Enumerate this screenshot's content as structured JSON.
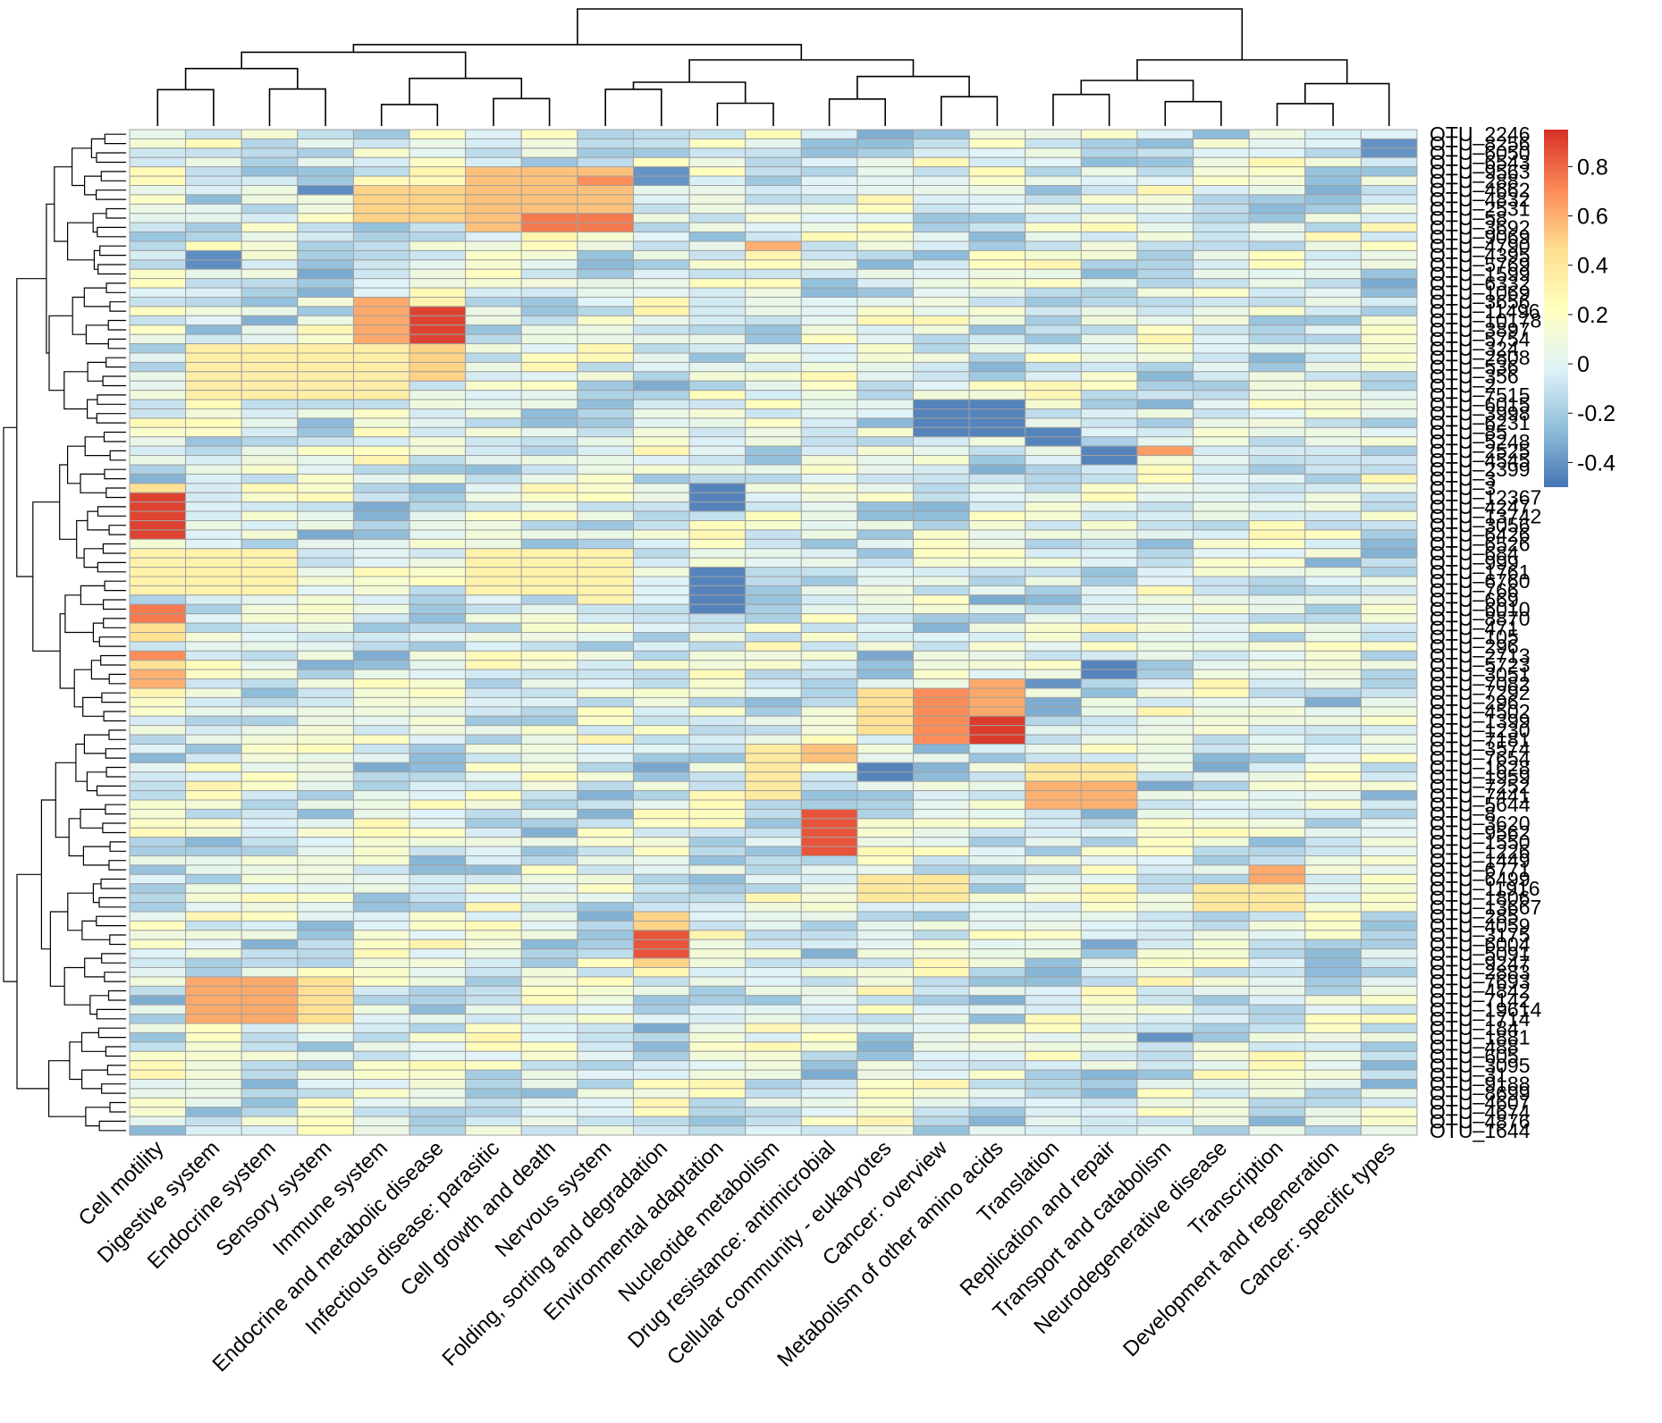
{
  "chart_data": {
    "type": "heatmap",
    "title": "",
    "columns": [
      "Cell motility",
      "Digestive system",
      "Endocrine system",
      "Sensory system",
      "Immune system",
      "Endocrine and metabolic disease",
      "Infectious disease: parasitic",
      "Cell growth and death",
      "Nervous system",
      "Folding, sorting and degradation",
      "Environmental adaptation",
      "Nucleotide metabolism",
      "Drug resistance: antimicrobial",
      "Cellular community - eukaryotes",
      "Cancer: overview",
      "Metabolism of other amino acids",
      "Translation",
      "Replication and repair",
      "Transport and catabolism",
      "Neurodegenerative disease",
      "Transcription",
      "Development and regeneration",
      "Cancer: specific types"
    ],
    "row_labels": [
      "OTU_2246",
      "OTU_8256",
      "OTU_6050",
      "OTU_6543",
      "OTU_9563",
      "OTU_288",
      "OTU_4662",
      "OTU_4832",
      "OTU_2531",
      "OTU_58",
      "OTU_3692",
      "OTU_9069",
      "OTU_4790",
      "OTU_4395",
      "OTU_5769",
      "OTU_1599",
      "OTU_6332",
      "OTU_1069",
      "OTU_3656",
      "OTU_11496",
      "OTU_10178",
      "OTU_3897",
      "OTU_5754",
      "OTU_324",
      "OTU_2808",
      "OTU_536",
      "OTU_356",
      "OTU_2",
      "OTU_7515",
      "OTU_6015",
      "OTU_3998",
      "OTU_6231",
      "OTU_85",
      "OTU_5248",
      "OTU_2525",
      "OTU_4545",
      "OTU_2399",
      "OTU_3",
      "OTU_3",
      "OTU_12367",
      "OTU_4247",
      "OTU_13742",
      "OTU_3056",
      "OTU_6426",
      "OTU_6526",
      "OTU_684",
      "OTU_999",
      "OTU_1761",
      "OTU_6760",
      "OTU_766",
      "OTU_669",
      "OTU_6010",
      "OTU_8870",
      "OTU_471",
      "OTU_105",
      "OTU_296",
      "OTU_2713",
      "OTU_5723",
      "OTU_3051",
      "OTU_7082",
      "OTU_7292",
      "OTU_296",
      "OTU_4502",
      "OTU_1399",
      "OTU_1230",
      "OTU_7181",
      "OTU_3574",
      "OTU_7654",
      "OTU_1628",
      "OTU_1959",
      "OTU_7252",
      "OTU_7441",
      "OTU_5644",
      "OTU_8",
      "OTU_3620",
      "OTU_9562",
      "OTU_1550",
      "OTU_1226",
      "OTU_1449",
      "OTU_6771",
      "OTU_6499",
      "OTU_11916",
      "OTU_1806",
      "OTU_13667",
      "OTU_285",
      "OTU_4059",
      "OTU_3175",
      "OTU_6004",
      "OTU_5091",
      "OTU_9247",
      "OTU_2883",
      "OTU_7693",
      "OTU_4842",
      "OTU_7142",
      "OTU_19614",
      "OTU_1714",
      "OTU_184",
      "OTU_1881",
      "OTU_488",
      "OTU_605",
      "OTU_3095",
      "OTU_31",
      "OTU_9188",
      "OTU_8699",
      "OTU_4607",
      "OTU_4674",
      "OTU_4876",
      "OTU_1644"
    ],
    "value_range": [
      -0.5,
      0.95
    ],
    "colorbar": {
      "ticks": [
        0.8,
        0.6,
        0.4,
        0.2,
        0,
        -0.2,
        -0.4
      ],
      "tick_labels": [
        "0.8",
        "0.6",
        "0.4",
        "0.2",
        "0",
        "-0.2",
        "-0.4"
      ],
      "colors": [
        "#4575b4",
        "#91bfdb",
        "#e0f3f8",
        "#ffffbf",
        "#fee090",
        "#fc8d59",
        "#d73027"
      ],
      "color_stops": [
        -0.5,
        -0.26,
        -0.02,
        0.22,
        0.46,
        0.7,
        0.95
      ]
    },
    "dendrograms": {
      "columns": true,
      "rows": true
    },
    "grid_line_color": "#a0a0a0",
    "hotspots": [
      {
        "cols": [
          0
        ],
        "rows": [
          39,
          40,
          41,
          42,
          43
        ],
        "value": 0.9
      },
      {
        "cols": [
          0
        ],
        "rows": [
          51,
          52
        ],
        "value": 0.75
      },
      {
        "cols": [
          0
        ],
        "rows": [
          56
        ],
        "value": 0.7
      },
      {
        "cols": [
          0
        ],
        "rows": [
          58,
          59
        ],
        "value": 0.6
      },
      {
        "cols": [
          0
        ],
        "rows": [
          38,
          53,
          54,
          57
        ],
        "value": 0.45
      },
      {
        "cols": [
          4
        ],
        "rows": [
          18,
          19,
          20,
          21,
          22
        ],
        "value": 0.62
      },
      {
        "cols": [
          5
        ],
        "rows": [
          19,
          20,
          21,
          22
        ],
        "value": 0.9
      },
      {
        "cols": [
          5
        ],
        "rows": [
          23,
          24,
          25,
          26
        ],
        "value": 0.5
      },
      {
        "cols": [
          4,
          5
        ],
        "rows": [
          6,
          7,
          8,
          9
        ],
        "value": 0.5
      },
      {
        "cols": [
          6,
          7,
          8
        ],
        "rows": [
          4,
          5,
          6,
          7,
          8,
          9,
          10
        ],
        "value": 0.55
      },
      {
        "cols": [
          7,
          8
        ],
        "rows": [
          9,
          10
        ],
        "value": 0.75
      },
      {
        "cols": [
          8
        ],
        "rows": [
          5
        ],
        "value": 0.7
      },
      {
        "cols": [
          1,
          2,
          3,
          4
        ],
        "rows": [
          23,
          24,
          25,
          26,
          27,
          28
        ],
        "value": 0.35
      },
      {
        "cols": [
          0,
          1,
          2,
          6,
          7,
          8
        ],
        "rows": [
          45,
          46,
          47,
          48,
          49
        ],
        "value": 0.32
      },
      {
        "cols": [
          14
        ],
        "rows": [
          60,
          61,
          62,
          63,
          64,
          65
        ],
        "value": 0.7
      },
      {
        "cols": [
          15
        ],
        "rows": [
          59,
          60,
          61,
          62
        ],
        "value": 0.62
      },
      {
        "cols": [
          15
        ],
        "rows": [
          63,
          64,
          65
        ],
        "value": 0.92
      },
      {
        "cols": [
          13
        ],
        "rows": [
          60,
          61,
          62,
          63,
          64
        ],
        "value": 0.45
      },
      {
        "cols": [
          12
        ],
        "rows": [
          73,
          74,
          75,
          76,
          77
        ],
        "value": 0.85
      },
      {
        "cols": [
          12
        ],
        "rows": [
          66,
          67
        ],
        "value": 0.55
      },
      {
        "cols": [
          9
        ],
        "rows": [
          86,
          87,
          88
        ],
        "value": 0.85
      },
      {
        "cols": [
          9
        ],
        "rows": [
          84,
          85,
          89
        ],
        "value": 0.5
      },
      {
        "cols": [
          1,
          2
        ],
        "rows": [
          91,
          92,
          93,
          94,
          95
        ],
        "value": 0.62
      },
      {
        "cols": [
          3
        ],
        "rows": [
          91,
          92,
          93,
          94,
          95
        ],
        "value": 0.45
      },
      {
        "cols": [
          16,
          17
        ],
        "rows": [
          70,
          71,
          72
        ],
        "value": 0.6
      },
      {
        "cols": [
          16,
          17
        ],
        "rows": [
          68,
          69
        ],
        "value": 0.4
      },
      {
        "cols": [
          18
        ],
        "rows": [
          34
        ],
        "value": 0.65
      },
      {
        "cols": [
          20
        ],
        "rows": [
          79,
          80
        ],
        "value": 0.62
      },
      {
        "cols": [
          19,
          20
        ],
        "rows": [
          81,
          82,
          83
        ],
        "value": 0.4
      },
      {
        "cols": [
          13,
          14
        ],
        "rows": [
          80,
          81,
          82
        ],
        "value": 0.4
      },
      {
        "cols": [
          11
        ],
        "rows": [
          66,
          67,
          68,
          69,
          70,
          71
        ],
        "value": 0.38
      },
      {
        "cols": [
          11
        ],
        "rows": [
          12
        ],
        "value": 0.6
      },
      {
        "cols": [
          10
        ],
        "rows": [
          47,
          48,
          49,
          50,
          51
        ],
        "value": -0.45
      },
      {
        "cols": [
          10
        ],
        "rows": [
          38,
          39,
          40
        ],
        "value": -0.45
      },
      {
        "cols": [
          14,
          15
        ],
        "rows": [
          29,
          30,
          31,
          32
        ],
        "value": -0.45
      },
      {
        "cols": [
          16
        ],
        "rows": [
          32,
          33
        ],
        "value": -0.45
      },
      {
        "cols": [
          17
        ],
        "rows": [
          34,
          35
        ],
        "value": -0.45
      },
      {
        "cols": [
          17
        ],
        "rows": [
          57,
          58
        ],
        "value": -0.45
      },
      {
        "cols": [
          16
        ],
        "rows": [
          59
        ],
        "value": -0.4
      },
      {
        "cols": [
          1
        ],
        "rows": [
          13,
          14
        ],
        "value": -0.42
      },
      {
        "cols": [
          3
        ],
        "rows": [
          6
        ],
        "value": -0.42
      },
      {
        "cols": [
          9
        ],
        "rows": [
          4,
          5
        ],
        "value": -0.4
      },
      {
        "cols": [
          22
        ],
        "rows": [
          1,
          2
        ],
        "value": -0.4
      },
      {
        "cols": [
          13
        ],
        "rows": [
          68,
          69
        ],
        "value": -0.45
      },
      {
        "cols": [
          18
        ],
        "rows": [
          97
        ],
        "value": -0.4
      }
    ]
  }
}
